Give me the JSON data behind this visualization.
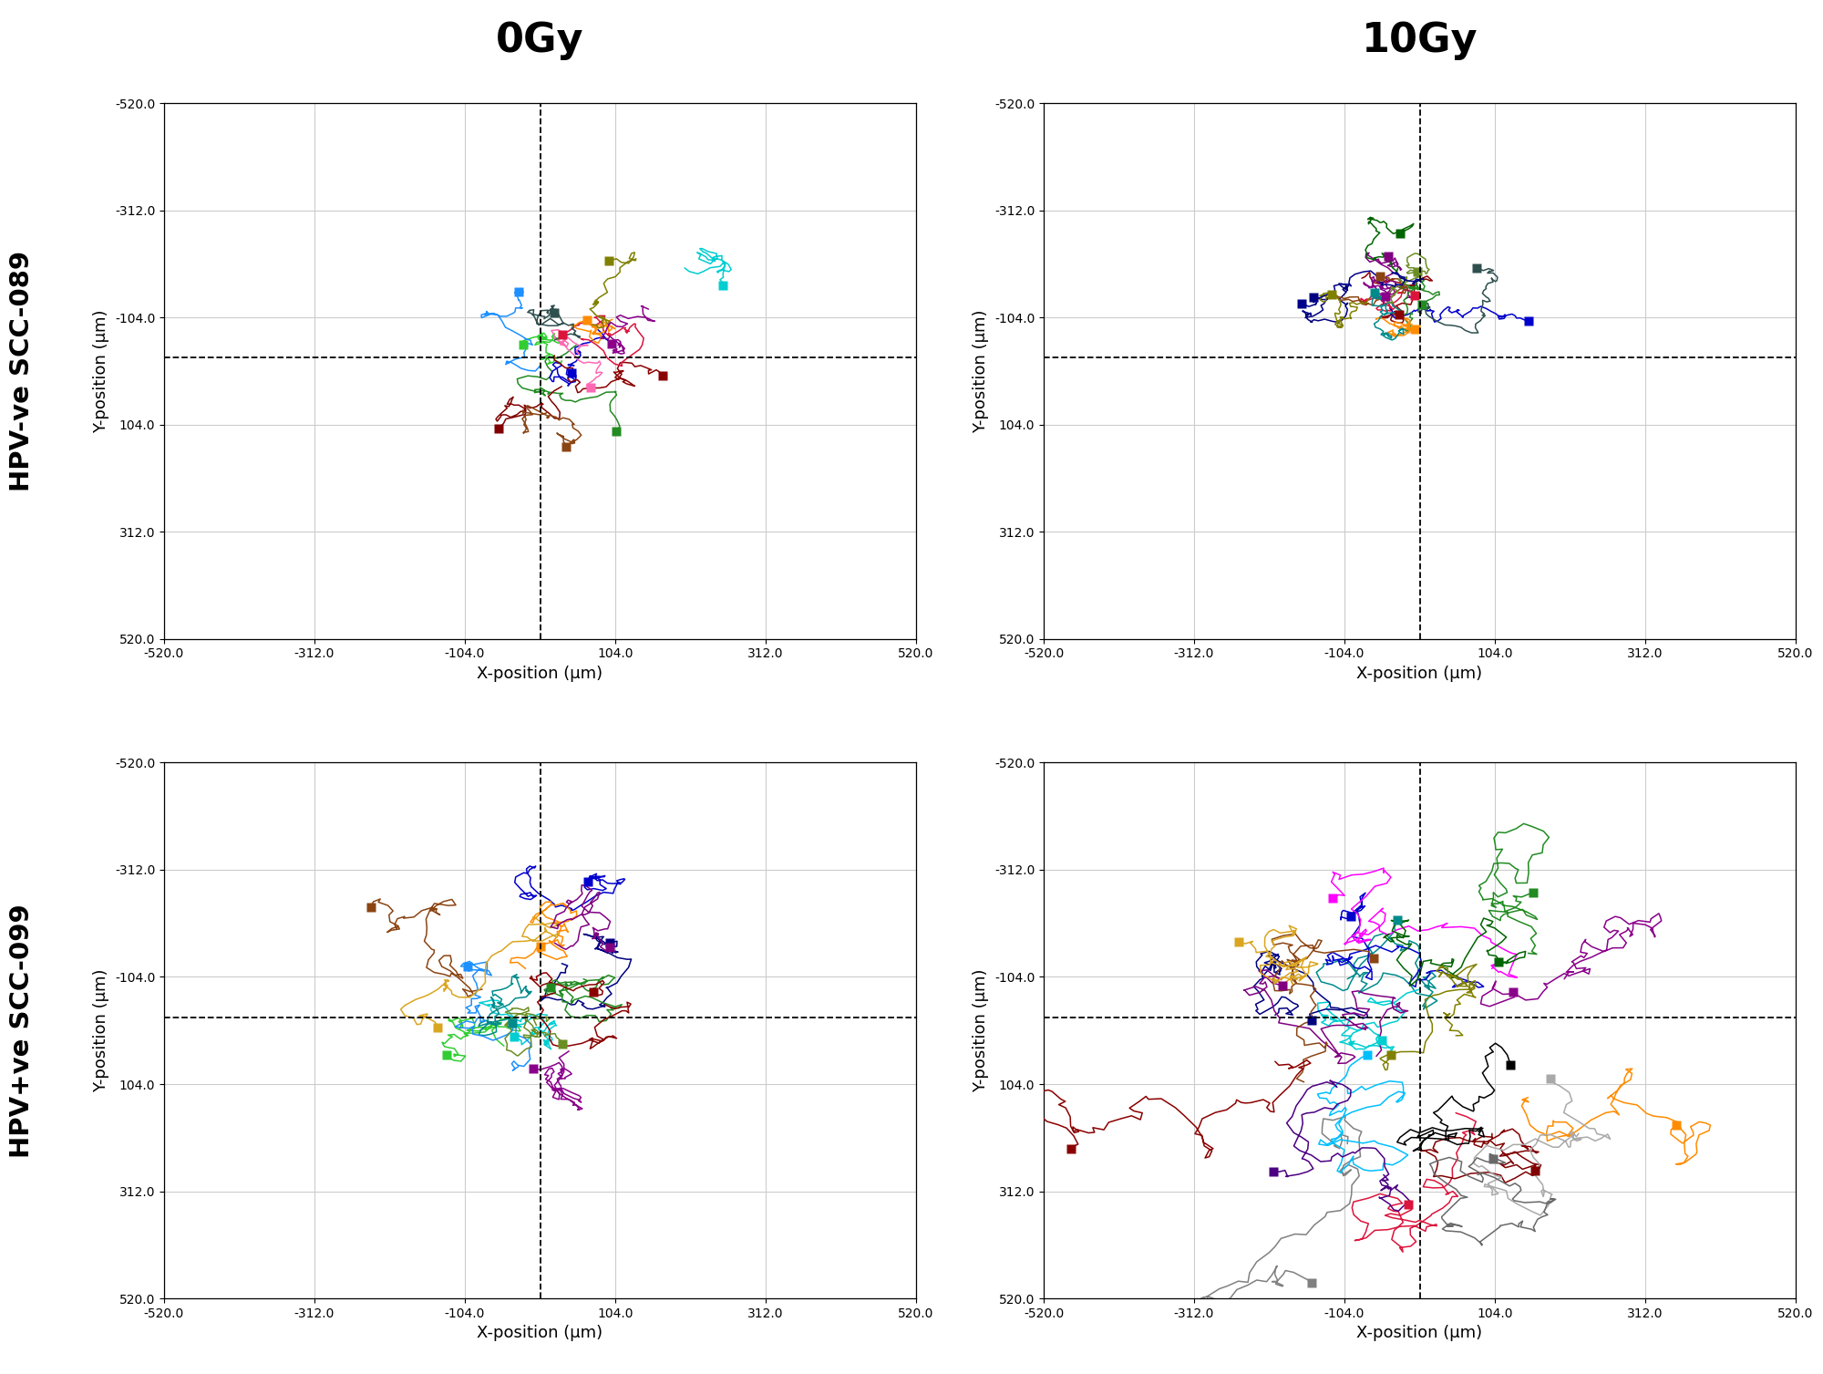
{
  "title_top_left": "0Gy",
  "title_top_right": "10Gy",
  "row_label_top": "HPV-ve SCC-089",
  "row_label_bottom": "HPV+ve SCC-099",
  "xlim": [
    -520,
    520
  ],
  "ylim": [
    -520,
    520
  ],
  "xticks": [
    -520.0,
    -312.0,
    -104.0,
    104.0,
    312.0,
    520.0
  ],
  "yticks": [
    -520.0,
    -312.0,
    -104.0,
    104.0,
    312.0,
    520.0
  ],
  "xlabel": "X-position (μm)",
  "ylabel": "Y-position (μm)",
  "dashed_x": 0,
  "dashed_y": -26,
  "background_color": "#ffffff",
  "grid_color": "#cccccc",
  "marker_size": 7,
  "line_width": 1.1,
  "panels": {
    "TL": {
      "colors": [
        "#32CD32",
        "#228B22",
        "#0000CD",
        "#8B0000",
        "#DC143C",
        "#FF8C00",
        "#00CED1",
        "#8B008B",
        "#800000",
        "#8B4513",
        "#1E90FF",
        "#FF69B4",
        "#808000",
        "#2F4F4F"
      ],
      "starts": [
        [
          30,
          -20
        ],
        [
          50,
          -50
        ],
        [
          80,
          -80
        ],
        [
          20,
          -30
        ],
        [
          60,
          -60
        ],
        [
          100,
          -100
        ],
        [
          200,
          -200
        ],
        [
          150,
          -120
        ],
        [
          30,
          30
        ],
        [
          10,
          80
        ],
        [
          0,
          -10
        ],
        [
          50,
          -40
        ],
        [
          70,
          -90
        ],
        [
          20,
          -60
        ]
      ],
      "step": 18,
      "steps": 50,
      "seed_base": 100
    },
    "TR": {
      "colors": [
        "#8B0000",
        "#DC143C",
        "#0000CD",
        "#000080",
        "#8B008B",
        "#800080",
        "#006400",
        "#228B22",
        "#FF8C00",
        "#8B4513",
        "#2F4F4F",
        "#008B8B",
        "#6B8E23",
        "#808000",
        "#00008B"
      ],
      "starts": [
        [
          -80,
          -180
        ],
        [
          -60,
          -150
        ],
        [
          -40,
          -120
        ],
        [
          -100,
          -160
        ],
        [
          -20,
          -140
        ],
        [
          -50,
          -130
        ],
        [
          -30,
          -200
        ],
        [
          -10,
          -110
        ],
        [
          -60,
          -100
        ],
        [
          -80,
          -130
        ],
        [
          10,
          -120
        ],
        [
          -20,
          -80
        ],
        [
          -40,
          -160
        ],
        [
          -70,
          -140
        ],
        [
          -10,
          -170
        ]
      ],
      "step": 14,
      "steps": 60,
      "seed_base": 200
    },
    "BL": {
      "colors": [
        "#0000CD",
        "#000080",
        "#FF8C00",
        "#8B4513",
        "#228B22",
        "#32CD32",
        "#8B008B",
        "#00CED1",
        "#008B8B",
        "#8B0000",
        "#1E90FF",
        "#DAA520",
        "#6B8E23",
        "#800080"
      ],
      "starts": [
        [
          -10,
          -260
        ],
        [
          30,
          -130
        ],
        [
          -20,
          -120
        ],
        [
          -80,
          -80
        ],
        [
          60,
          -100
        ],
        [
          -50,
          30
        ],
        [
          40,
          40
        ],
        [
          10,
          -30
        ],
        [
          -60,
          -10
        ],
        [
          90,
          -50
        ],
        [
          -30,
          70
        ],
        [
          -10,
          -220
        ],
        [
          -5,
          -10
        ],
        [
          20,
          -170
        ]
      ],
      "step": 22,
      "steps": 70,
      "seed_base": 300
    },
    "BR": {
      "colors": [
        "#008B8B",
        "#00CED1",
        "#0000CD",
        "#000080",
        "#FF00FF",
        "#8B008B",
        "#800080",
        "#FF8C00",
        "#8B4513",
        "#DC143C",
        "#8B0000",
        "#800000",
        "#808080",
        "#A9A9A9",
        "#000000",
        "#006400",
        "#228B22",
        "#DAA520",
        "#808000",
        "#00BFFF",
        "#696969",
        "#4B0082"
      ],
      "starts": [
        [
          -100,
          -100
        ],
        [
          0,
          -80
        ],
        [
          50,
          -90
        ],
        [
          -200,
          -30
        ],
        [
          100,
          -120
        ],
        [
          200,
          -100
        ],
        [
          -60,
          50
        ],
        [
          150,
          130
        ],
        [
          -160,
          100
        ],
        [
          50,
          160
        ],
        [
          -200,
          60
        ],
        [
          100,
          200
        ],
        [
          -100,
          220
        ],
        [
          220,
          200
        ],
        [
          0,
          200
        ],
        [
          -50,
          -180
        ],
        [
          150,
          -150
        ],
        [
          -160,
          -140
        ],
        [
          50,
          10
        ],
        [
          -100,
          110
        ],
        [
          80,
          280
        ],
        [
          -50,
          280
        ]
      ],
      "step": 28,
      "steps": 80,
      "seed_base": 400
    }
  }
}
